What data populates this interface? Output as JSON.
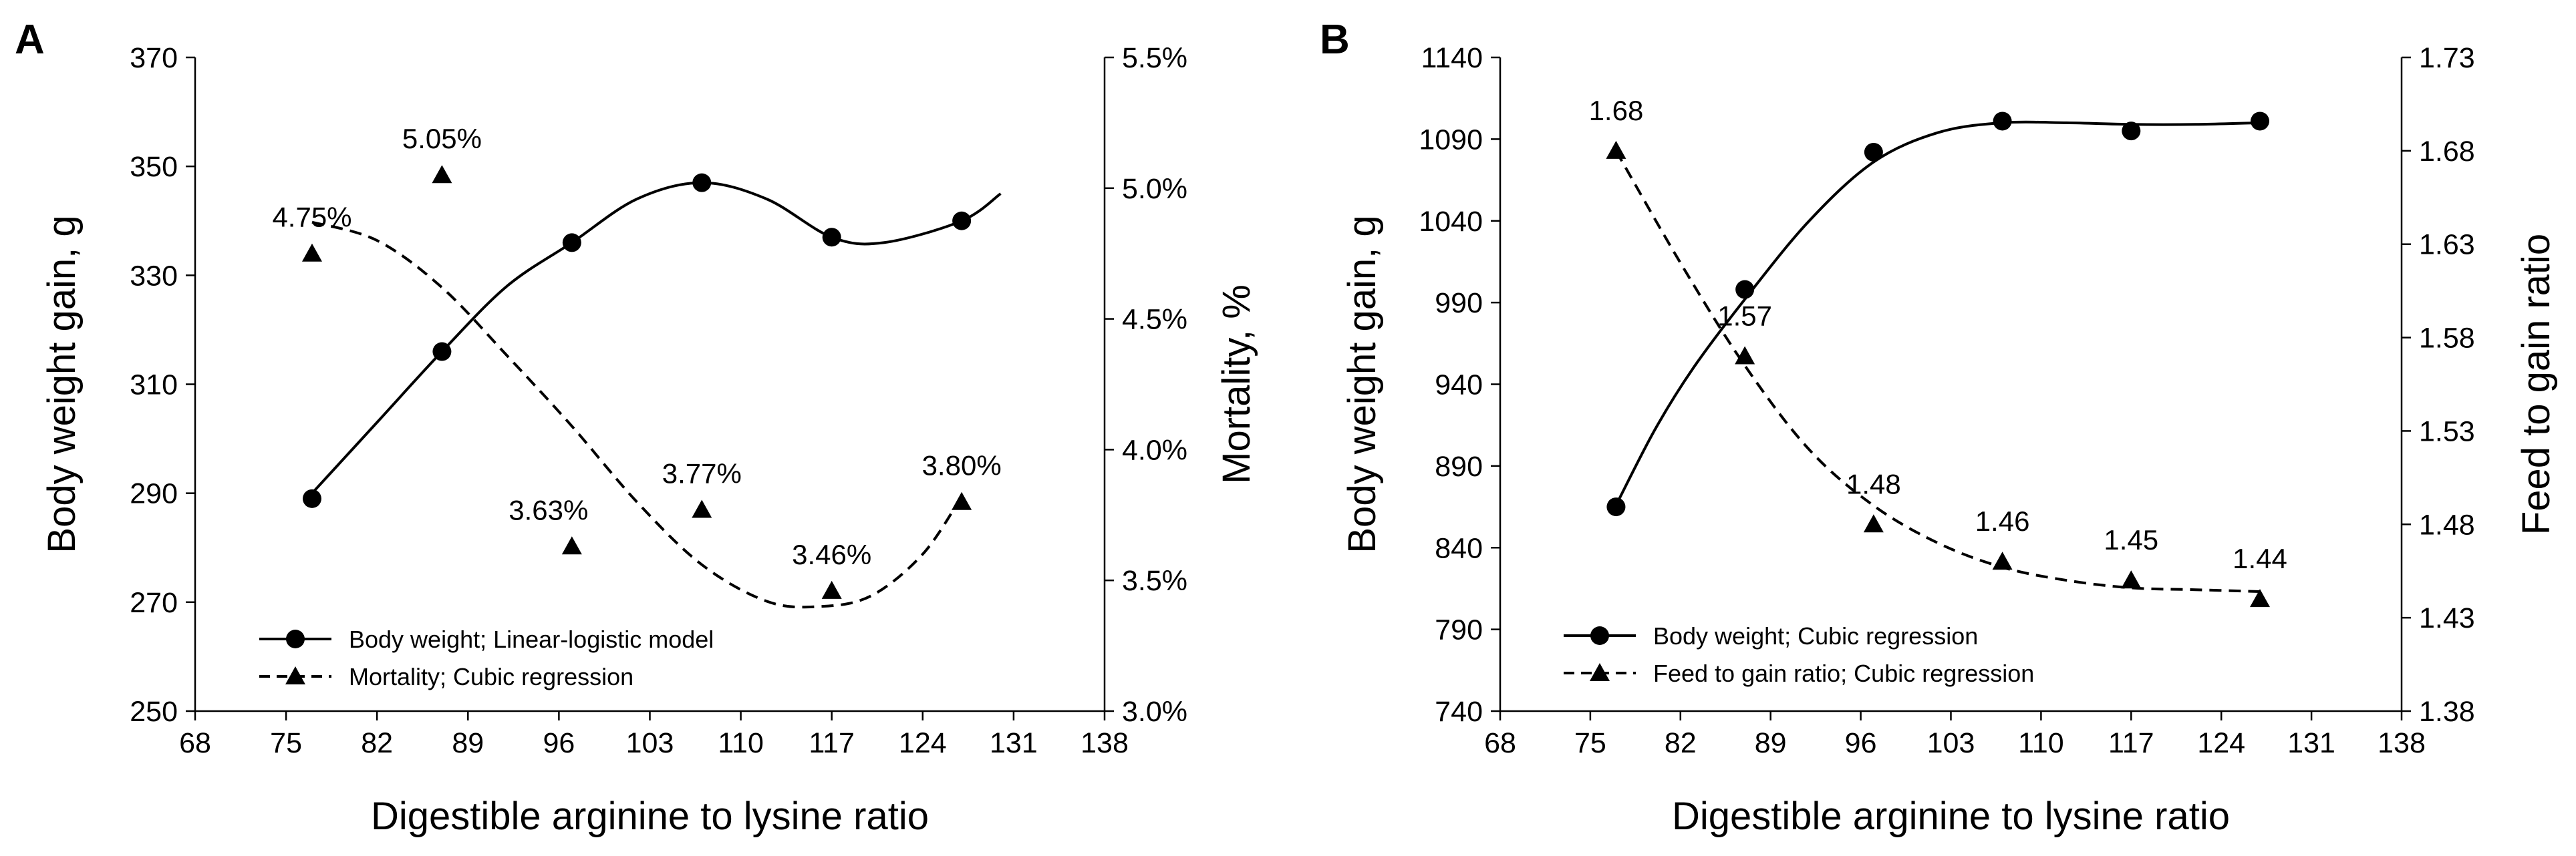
{
  "chart_data": [
    {
      "type": "line",
      "panel_label": "A",
      "xlabel": "Digestible arginine to lysine ratio",
      "ylabel": "Body weight gain, g",
      "y2label": "Mortality, %",
      "xlim": [
        68,
        138
      ],
      "xticks": [
        "68",
        "75",
        "82",
        "89",
        "96",
        "103",
        "110",
        "117",
        "124",
        "131",
        "138"
      ],
      "ylim": [
        250,
        370
      ],
      "yticks": [
        "250",
        "270",
        "290",
        "310",
        "330",
        "350",
        "370"
      ],
      "y2lim": [
        3.0,
        5.5
      ],
      "y2ticks": [
        "3.0%",
        "3.5%",
        "4.0%",
        "4.5%",
        "5.0%",
        "5.5%"
      ],
      "grid": false,
      "legend_position": "bottom-left",
      "series": [
        {
          "name": "Body weight; Linear-logistic model",
          "marker": "circle",
          "line_style": "solid",
          "axis": "left",
          "x": [
            77,
            87,
            97,
            107,
            117,
            127
          ],
          "y": [
            289,
            316,
            336,
            347,
            337,
            340
          ],
          "fit": {
            "x": [
              77,
              82,
              87,
              92,
              97,
              102,
              107,
              112,
              117,
              121,
              127,
              130
            ],
            "y": [
              290,
              303,
              316,
              328,
              336,
              344,
              347,
              344,
              337,
              336,
              340,
              345
            ]
          }
        },
        {
          "name": "Mortality; Cubic regression",
          "marker": "triangle",
          "line_style": "dashed",
          "axis": "right",
          "x": [
            77,
            87,
            97,
            107,
            117,
            127
          ],
          "y": [
            4.75,
            5.05,
            3.63,
            3.77,
            3.46,
            3.8
          ],
          "labels": [
            "4.75%",
            "5.05%",
            "3.63%",
            "3.77%",
            "3.46%",
            "3.80%"
          ],
          "fit": {
            "x": [
              77,
              82,
              87,
              92,
              97,
              102,
              107,
              112,
              116,
              120,
              124,
              127
            ],
            "y": [
              4.87,
              4.8,
              4.62,
              4.36,
              4.09,
              3.8,
              3.56,
              3.42,
              3.4,
              3.44,
              3.6,
              3.82
            ]
          }
        }
      ]
    },
    {
      "type": "line",
      "panel_label": "B",
      "xlabel": "Digestible arginine to lysine ratio",
      "ylabel": "Body weight gain, g",
      "y2label": "Feed to gain ratio",
      "xlim": [
        68,
        138
      ],
      "xticks": [
        "68",
        "75",
        "82",
        "89",
        "96",
        "103",
        "110",
        "117",
        "124",
        "131",
        "138"
      ],
      "ylim": [
        740,
        1140
      ],
      "yticks": [
        "740",
        "790",
        "840",
        "890",
        "940",
        "990",
        "1040",
        "1090",
        "1140"
      ],
      "y2lim": [
        1.38,
        1.73
      ],
      "y2ticks": [
        "1.38",
        "1.43",
        "1.48",
        "1.53",
        "1.58",
        "1.63",
        "1.68",
        "1.73"
      ],
      "grid": false,
      "legend_position": "bottom-left",
      "series": [
        {
          "name": "Body weight; Cubic regression",
          "marker": "circle",
          "line_style": "solid",
          "axis": "left",
          "x": [
            77,
            87,
            97,
            107,
            117,
            127
          ],
          "y": [
            865,
            998,
            1082,
            1101,
            1095,
            1101
          ],
          "fit": {
            "x": [
              77,
              80,
              83,
              87,
              92,
              97,
              102,
              107,
              112,
              117,
              122,
              127
            ],
            "y": [
              866,
              912,
              950,
              992,
              1040,
              1076,
              1094,
              1100,
              1100,
              1099,
              1099,
              1100
            ]
          }
        },
        {
          "name": "Feed to gain ratio; Cubic regression",
          "marker": "triangle",
          "line_style": "dashed",
          "axis": "right",
          "x": [
            77,
            87,
            97,
            107,
            117,
            127
          ],
          "y": [
            1.68,
            1.57,
            1.48,
            1.46,
            1.45,
            1.44
          ],
          "labels": [
            "1.68",
            "1.57",
            "1.48",
            "1.46",
            "1.45",
            "1.44"
          ],
          "fit": {
            "x": [
              77,
              82,
              87,
              92,
              97,
              102,
              107,
              112,
              117,
              122,
              127
            ],
            "y": [
              1.68,
              1.62,
              1.565,
              1.52,
              1.49,
              1.47,
              1.457,
              1.45,
              1.446,
              1.445,
              1.444
            ]
          }
        }
      ]
    }
  ]
}
